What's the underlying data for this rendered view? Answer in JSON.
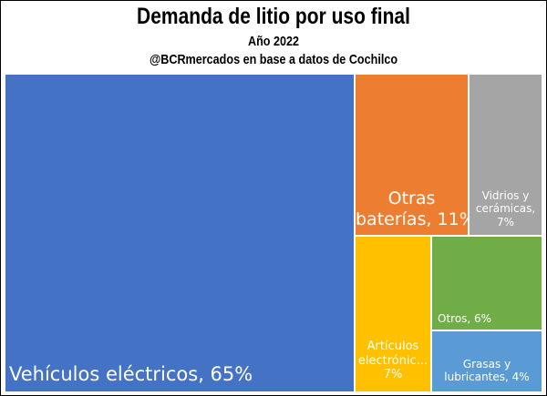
{
  "chart_data": {
    "type": "treemap",
    "title": "Demanda de litio por uso final",
    "subtitle": "Año 2022",
    "source": "@BCRmercados en base a datos de Cochilco",
    "items": [
      {
        "label_lines": [
          "Vehículos eléctricos, 65%"
        ],
        "name": "Vehículos eléctricos",
        "value": 65,
        "color": "#4472C4"
      },
      {
        "label_lines": [
          "Otras",
          "baterías, 11%"
        ],
        "name": "Otras baterías",
        "value": 11,
        "color": "#ED7D31"
      },
      {
        "label_lines": [
          "Vidrios y",
          "cerámicas,",
          "7%"
        ],
        "name": "Vidrios y cerámicas",
        "value": 7,
        "color": "#A5A5A5"
      },
      {
        "label_lines": [
          "Artículos",
          "electrónic...",
          "7%"
        ],
        "name": "Artículos electrónicos",
        "value": 7,
        "color": "#FFC000"
      },
      {
        "label_lines": [
          "Otros, 6%"
        ],
        "name": "Otros",
        "value": 6,
        "color": "#70AD47"
      },
      {
        "label_lines": [
          "Grasas y",
          "lubricantes, 4%"
        ],
        "name": "Grasas y lubricantes",
        "value": 4,
        "color": "#5B9BD5"
      }
    ]
  }
}
